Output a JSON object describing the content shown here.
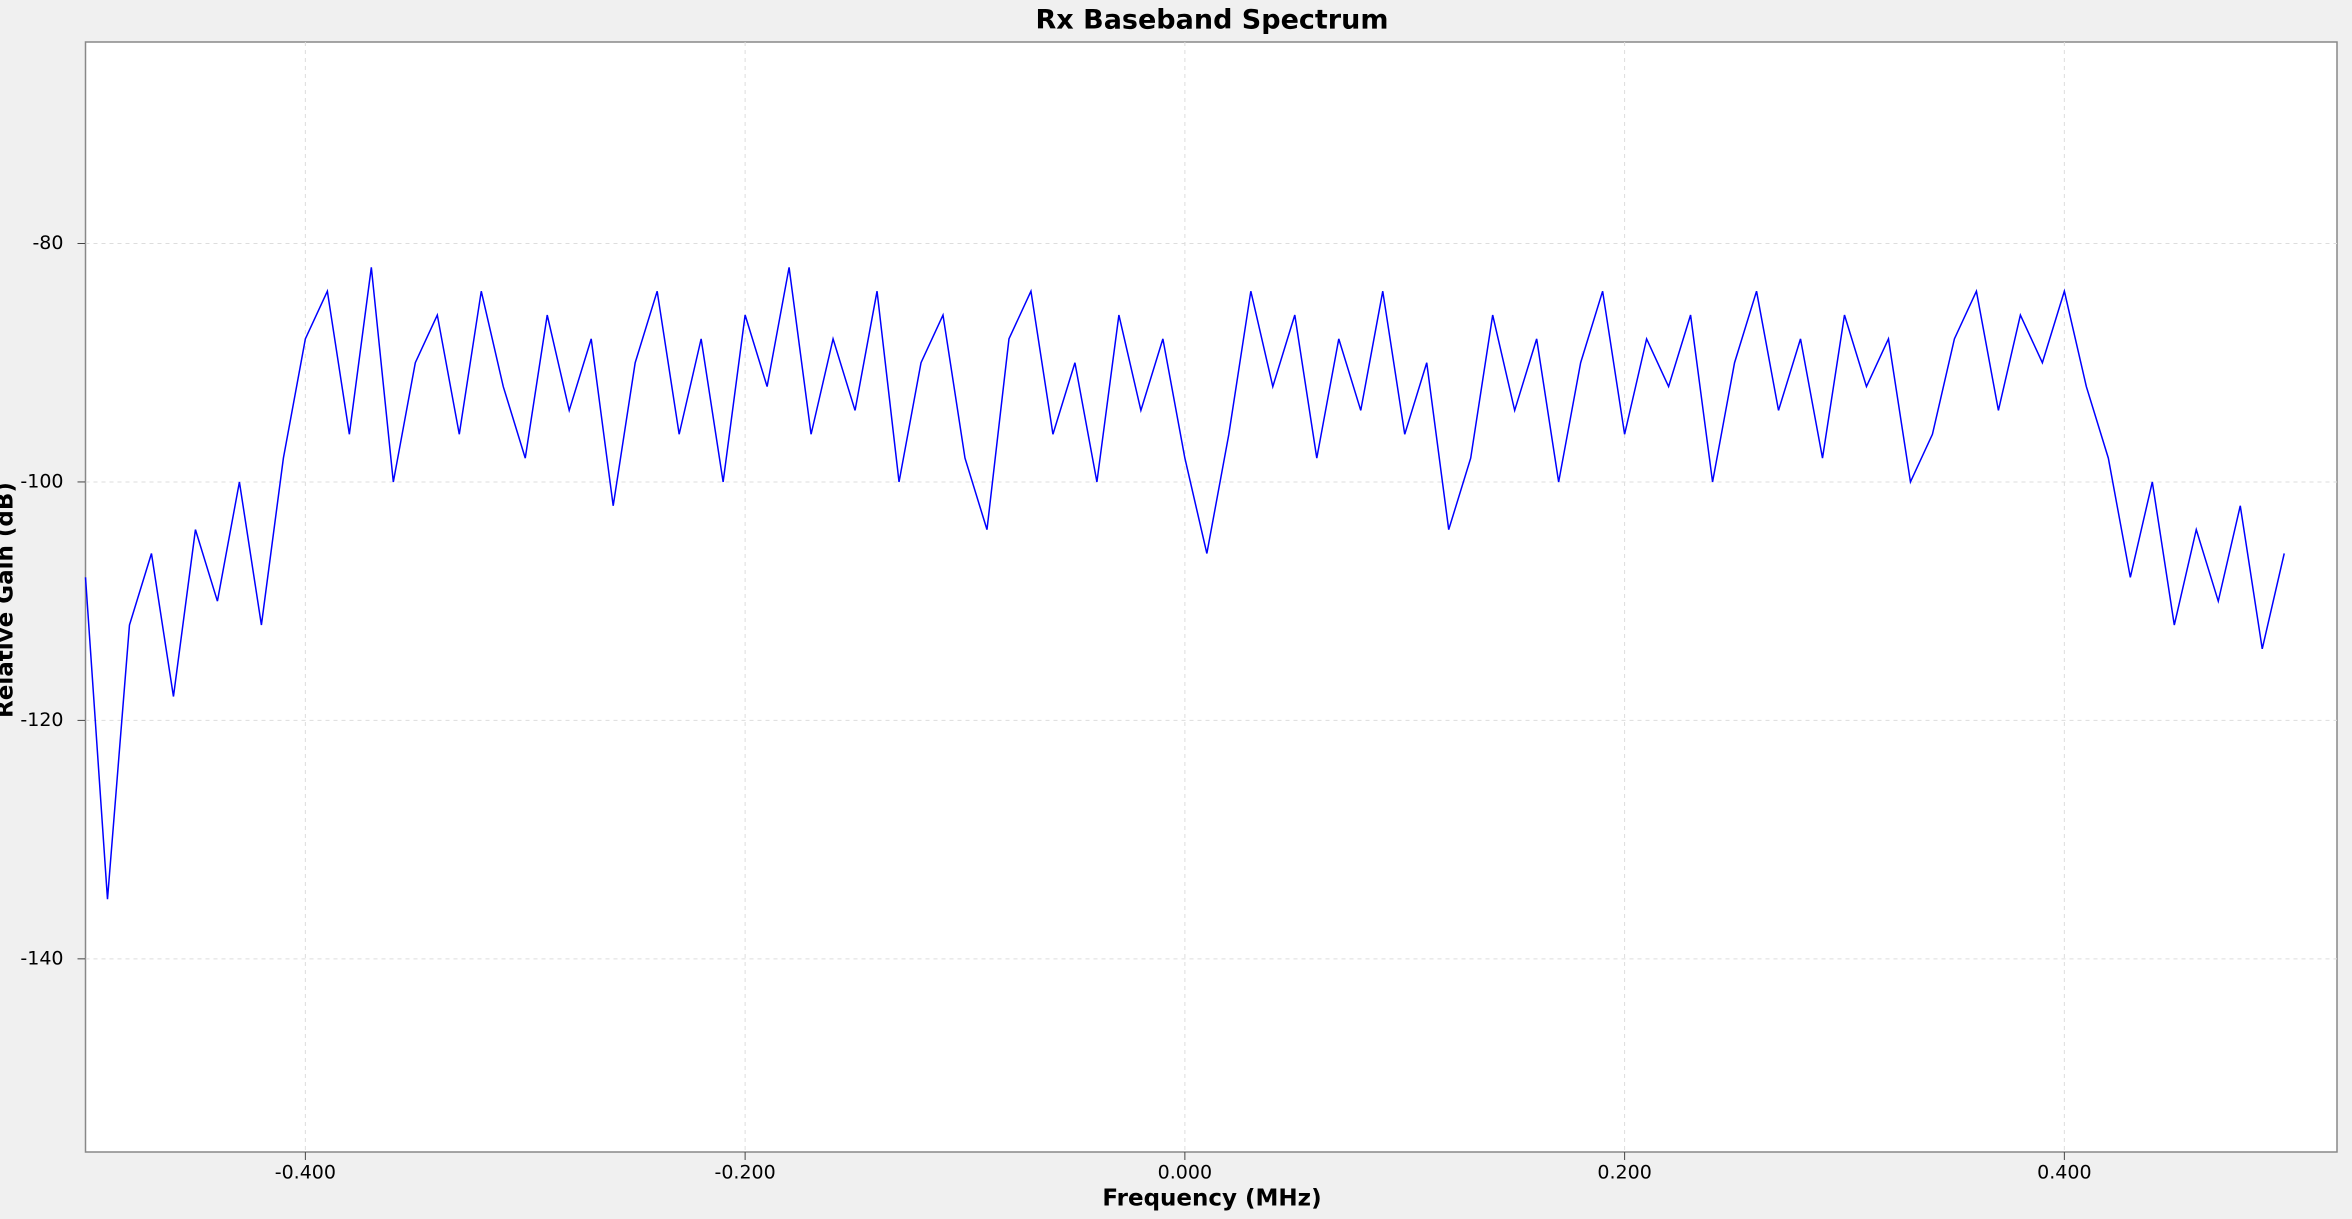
{
  "chart_data": {
    "type": "line",
    "title": "Rx Baseband Spectrum",
    "x_label": "Frequency (MHz)",
    "y_label": "Relative Gain (dB)",
    "color": "#0000ff",
    "grid": true,
    "x": [
      -0.5,
      -0.49,
      -0.48,
      -0.47,
      -0.46,
      -0.45,
      -0.44,
      -0.43,
      -0.42,
      -0.41,
      -0.4,
      -0.39,
      -0.38,
      -0.37,
      -0.36,
      -0.35,
      -0.34,
      -0.33,
      -0.32,
      -0.31,
      -0.3,
      -0.29,
      -0.28,
      -0.27,
      -0.26,
      -0.25,
      -0.24,
      -0.23,
      -0.22,
      -0.21,
      -0.2,
      -0.19,
      -0.18,
      -0.17,
      -0.16,
      -0.15,
      -0.14,
      -0.13,
      -0.12,
      -0.11,
      -0.1,
      -0.09,
      -0.08,
      -0.07,
      -0.06,
      -0.05,
      -0.04,
      -0.03,
      -0.02,
      -0.01,
      0,
      0.01,
      0.02,
      0.03,
      0.04,
      0.05,
      0.06,
      0.07,
      0.08,
      0.09,
      0.1,
      0.11,
      0.12,
      0.13,
      0.14,
      0.15,
      0.16,
      0.17,
      0.18,
      0.19,
      0.2,
      0.21,
      0.22,
      0.23,
      0.24,
      0.25,
      0.26,
      0.27,
      0.28,
      0.29,
      0.3,
      0.31,
      0.32,
      0.33,
      0.34,
      0.35,
      0.36,
      0.37,
      0.38,
      0.39,
      0.4,
      0.41,
      0.42,
      0.43,
      0.44,
      0.45,
      0.46,
      0.47,
      0.48,
      0.49,
      0.5
    ],
    "values": [
      -108,
      -135,
      -112,
      -106,
      -118,
      -104,
      -110,
      -100,
      -112,
      -98,
      -88,
      -84,
      -96,
      -82,
      -100,
      -90,
      -86,
      -96,
      -84,
      -92,
      -98,
      -86,
      -94,
      -88,
      -102,
      -90,
      -84,
      -96,
      -88,
      -100,
      -86,
      -92,
      -82,
      -96,
      -88,
      -94,
      -84,
      -100,
      -90,
      -86,
      -98,
      -104,
      -88,
      -84,
      -96,
      -90,
      -100,
      -86,
      -94,
      -88,
      -98,
      -106,
      -96,
      -84,
      -92,
      -86,
      -98,
      -88,
      -94,
      -84,
      -96,
      -90,
      -104,
      -98,
      -86,
      -94,
      -88,
      -100,
      -90,
      -84,
      -96,
      -88,
      -92,
      -86,
      -100,
      -90,
      -84,
      -94,
      -88,
      -98,
      -86,
      -92,
      -88,
      -100,
      -96,
      -88,
      -84,
      -94,
      -86,
      -90,
      -84,
      -92,
      -98,
      -108,
      -100,
      -112,
      -104,
      -110,
      -102,
      -114,
      -106
    ],
    "xlim": [
      -0.5,
      0.524
    ],
    "ylim": [
      -156.2,
      -63.1
    ],
    "xticks": [
      {
        "value": -0.4,
        "label": "-0.400"
      },
      {
        "value": -0.2,
        "label": "-0.200"
      },
      {
        "value": 0,
        "label": "0.000"
      },
      {
        "value": 0.2,
        "label": "0.200"
      },
      {
        "value": 0.4,
        "label": "0.400"
      }
    ],
    "yticks": [
      -80,
      -100,
      -120,
      -140
    ]
  }
}
